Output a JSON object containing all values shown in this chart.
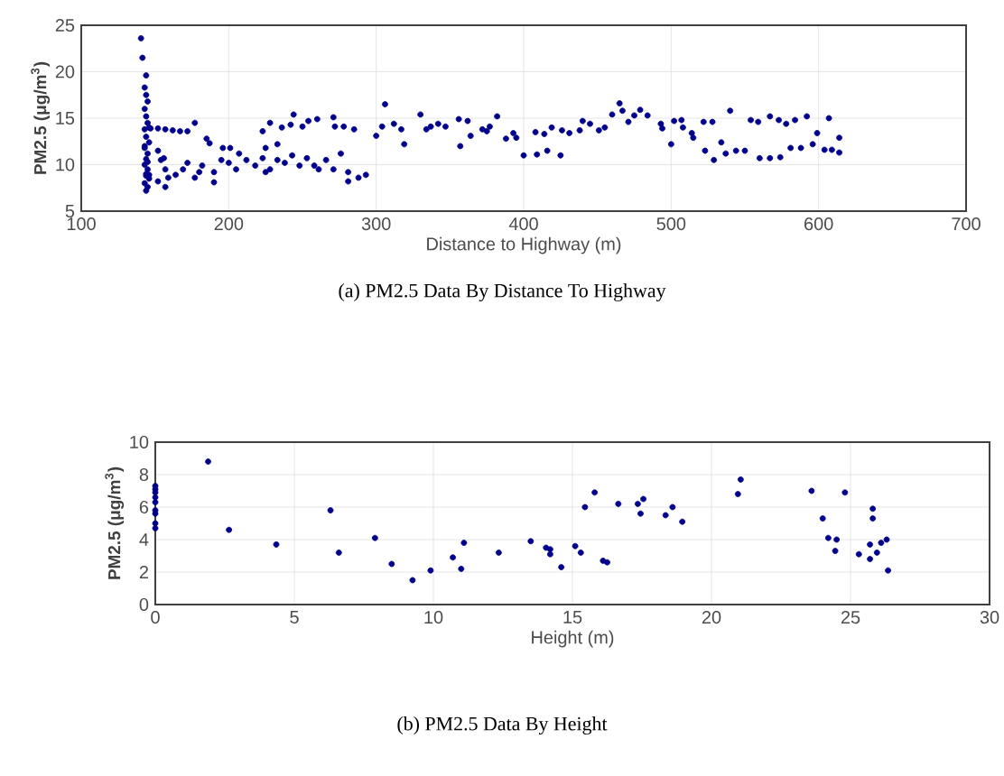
{
  "chart_data": [
    {
      "type": "scatter",
      "title": "(a)  PM2.5 Data By Distance To Highway",
      "xlabel": "Distance to Highway (m)",
      "ylabel": "PM2.5 (μg/m$^{3}$)",
      "xlim": [
        100,
        700
      ],
      "xticks": [
        100,
        200,
        300,
        400,
        500,
        600,
        700
      ],
      "ylim": [
        5,
        25
      ],
      "yticks": [
        5,
        10,
        15,
        20,
        25
      ],
      "grid": true,
      "marker": "circle",
      "series": [
        {
          "color": "#00008b",
          "x": [
            140.5,
            141.5,
            144,
            143,
            144,
            145,
            143,
            144,
            145,
            143,
            144,
            146,
            143,
            145,
            144,
            143,
            145,
            144,
            146,
            143,
            145,
            144,
            143,
            145,
            144,
            146,
            147,
            152,
            157,
            162,
            167,
            172,
            177,
            185,
            187,
            196,
            201,
            223,
            228,
            236,
            242,
            244,
            250,
            254,
            260,
            271,
            272,
            278,
            285,
            306,
            304,
            300,
            312,
            317,
            319,
            330,
            334,
            337,
            342,
            347,
            356,
            362,
            357,
            364,
            372,
            377,
            146,
            152,
            154,
            157,
            159,
            164,
            169,
            172,
            177,
            180,
            182,
            190,
            190,
            195,
            200,
            205,
            207,
            212,
            218,
            223,
            228,
            233,
            238,
            243,
            248,
            253,
            258,
            266,
            271,
            276,
            281,
            288,
            293,
            281,
            261,
            233,
            225,
            152,
            156,
            157,
            225,
            382,
            375,
            388,
            393,
            395,
            400,
            408,
            409,
            414,
            416,
            419,
            425,
            426,
            431,
            438,
            440,
            445,
            451,
            455,
            460,
            465,
            467,
            471,
            475,
            479,
            484,
            493,
            494,
            502,
            500,
            507,
            508,
            514,
            515,
            522,
            528,
            523,
            529,
            534,
            537,
            540,
            544,
            550,
            554,
            559,
            560,
            567,
            567,
            574,
            573,
            578,
            581,
            584,
            588,
            592,
            596,
            599,
            604,
            607,
            609,
            614,
            614
          ],
          "values": [
            23.6,
            21.5,
            19.6,
            18.3,
            17.5,
            16.8,
            16.0,
            15.2,
            14.5,
            13.8,
            13.0,
            12.4,
            11.8,
            11.2,
            10.6,
            10.0,
            9.5,
            9.0,
            8.5,
            8.0,
            7.6,
            7.2,
            12.0,
            10.3,
            8.8,
            14.0,
            13.9,
            13.9,
            13.8,
            13.7,
            13.6,
            13.6,
            14.5,
            12.8,
            12.3,
            11.8,
            11.8,
            13.6,
            14.5,
            14.0,
            14.3,
            15.4,
            14.1,
            14.7,
            14.9,
            15.1,
            14.1,
            14.1,
            13.8,
            16.5,
            14.1,
            13.1,
            14.4,
            13.8,
            12.2,
            15.4,
            13.8,
            14.1,
            14.4,
            14.1,
            14.9,
            14.7,
            12.0,
            13.1,
            13.8,
            14.1,
            8.9,
            8.2,
            10.5,
            9.5,
            8.6,
            8.9,
            9.5,
            10.2,
            8.6,
            9.2,
            9.9,
            8.1,
            9.2,
            10.5,
            10.2,
            9.5,
            11.2,
            10.5,
            9.9,
            10.7,
            9.5,
            10.5,
            10.2,
            11.0,
            9.9,
            10.7,
            9.9,
            10.5,
            9.5,
            11.2,
            9.2,
            8.6,
            8.9,
            8.2,
            9.5,
            12.2,
            11.8,
            11.5,
            10.7,
            7.6,
            9.2,
            15.2,
            13.6,
            12.8,
            13.4,
            12.9,
            11.0,
            13.5,
            11.1,
            13.3,
            11.5,
            14.0,
            11.0,
            13.7,
            13.4,
            13.7,
            14.7,
            14.4,
            13.7,
            14.0,
            15.4,
            16.6,
            15.8,
            14.6,
            15.3,
            15.9,
            15.3,
            14.4,
            13.9,
            14.7,
            12.2,
            14.8,
            14.0,
            13.4,
            12.9,
            14.6,
            14.6,
            11.5,
            10.5,
            12.4,
            11.2,
            15.8,
            11.5,
            11.5,
            14.8,
            14.6,
            10.7,
            10.7,
            15.2,
            10.8,
            14.8,
            14.4,
            11.8,
            14.8,
            11.8,
            15.2,
            12.2,
            13.4,
            11.6,
            15.0,
            11.6,
            12.9,
            11.3
          ]
        }
      ]
    },
    {
      "type": "scatter",
      "title": "(b)  PM2.5 Data By Height",
      "xlabel": "Height (m)",
      "ylabel": "PM2.5 (μg/m$^{3}$)",
      "xlim": [
        0,
        30
      ],
      "xticks": [
        0,
        5,
        10,
        15,
        20,
        25,
        30
      ],
      "ylim": [
        0,
        10
      ],
      "yticks": [
        0,
        2,
        4,
        6,
        8,
        10
      ],
      "grid": true,
      "marker": "circle",
      "series": [
        {
          "color": "#00008b",
          "x": [
            0,
            0,
            0,
            0,
            0,
            0,
            0,
            0,
            0,
            1.9,
            2.65,
            4.35,
            6.3,
            6.6,
            7.9,
            8.5,
            9.25,
            9.9,
            10.7,
            11.0,
            11.1,
            12.35,
            13.5,
            14.05,
            14.2,
            14.2,
            14.6,
            15.1,
            15.3,
            15.45,
            15.8,
            16.1,
            16.25,
            16.65,
            17.35,
            17.45,
            17.55,
            18.35,
            18.6,
            18.95,
            20.95,
            21.05,
            23.6,
            24.0,
            24.2,
            24.5,
            24.45,
            24.8,
            25.3,
            25.7,
            25.7,
            25.8,
            25.8,
            25.95,
            26.1,
            26.3,
            26.35
          ],
          "values": [
            7.3,
            7.1,
            6.9,
            6.6,
            6.3,
            5.8,
            5.6,
            5.0,
            4.7,
            8.8,
            4.6,
            3.7,
            5.8,
            3.2,
            4.1,
            2.5,
            1.5,
            2.1,
            2.9,
            2.2,
            3.8,
            3.2,
            3.9,
            3.5,
            3.4,
            3.1,
            2.3,
            3.6,
            3.2,
            6.0,
            6.9,
            2.7,
            2.6,
            6.2,
            6.2,
            5.6,
            6.5,
            5.5,
            6.0,
            5.1,
            6.8,
            7.7,
            7.0,
            5.3,
            4.1,
            4.0,
            3.3,
            6.9,
            3.1,
            3.7,
            2.8,
            5.9,
            5.3,
            3.2,
            3.8,
            4.0,
            2.1
          ]
        }
      ]
    }
  ]
}
